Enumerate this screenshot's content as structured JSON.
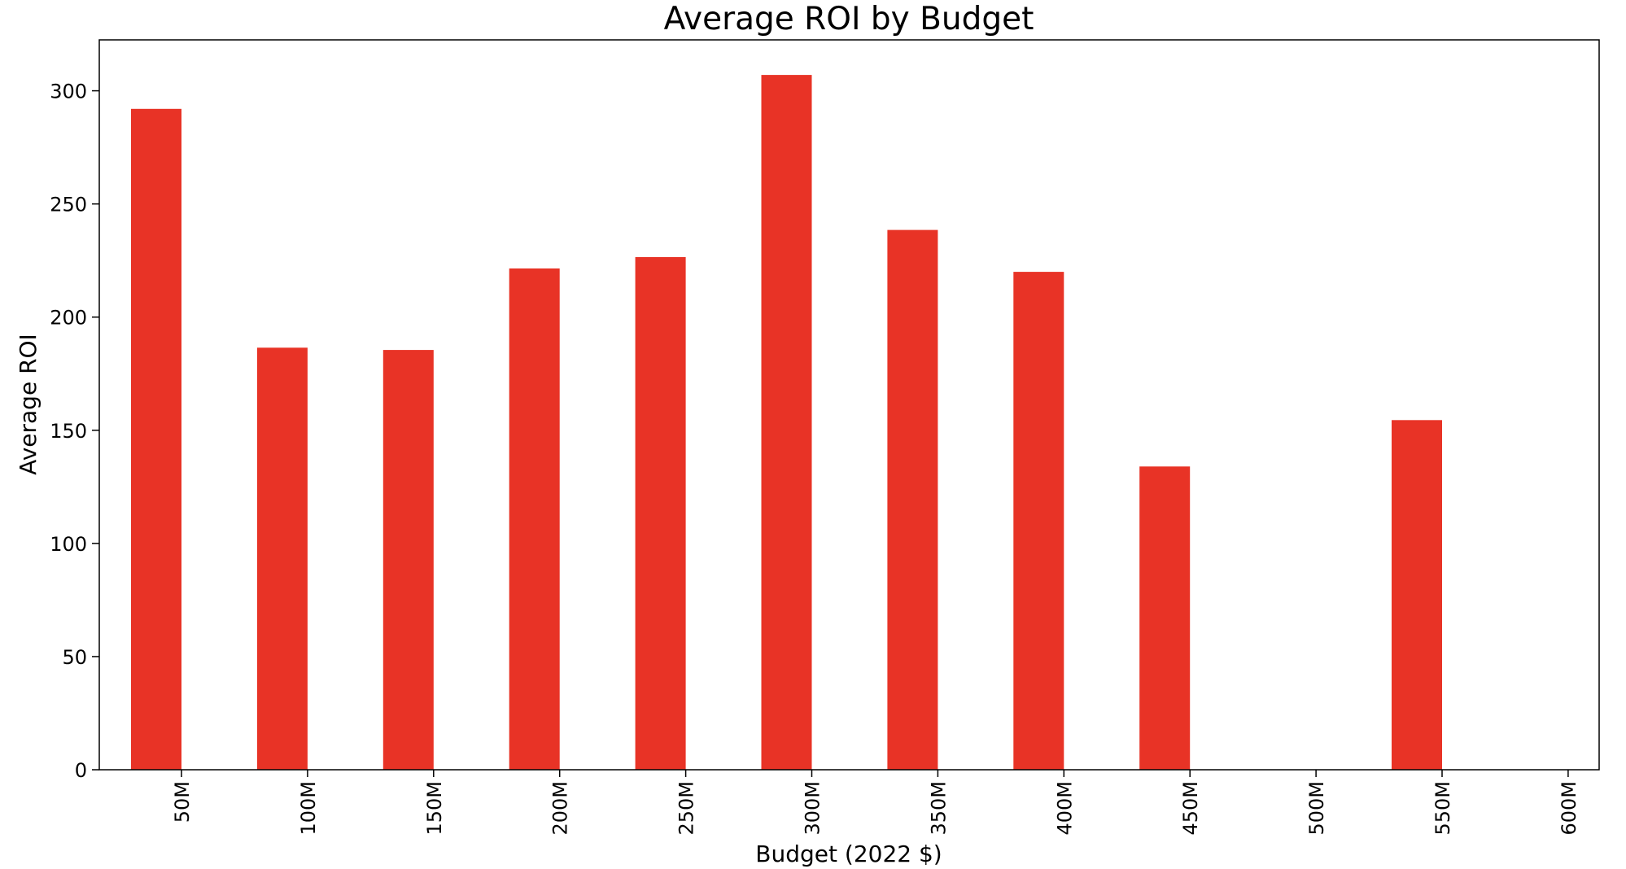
{
  "chart_data": {
    "type": "bar",
    "title": "Average ROI by Budget",
    "xlabel": "Budget (2022 $)",
    "ylabel": "Average ROI",
    "categories": [
      "50M",
      "100M",
      "150M",
      "200M",
      "250M",
      "300M",
      "350M",
      "400M",
      "450M",
      "500M",
      "550M",
      "600M"
    ],
    "values": [
      292,
      186.5,
      185.5,
      221.5,
      226.5,
      307,
      238.5,
      220,
      134,
      null,
      154.5,
      null
    ],
    "yticks": [
      0,
      50,
      100,
      150,
      200,
      250,
      300
    ],
    "ylim": [
      0,
      322.5
    ],
    "grid": false,
    "legend": "none",
    "colors": {
      "bar": "#e83326",
      "axis": "#000000"
    }
  }
}
